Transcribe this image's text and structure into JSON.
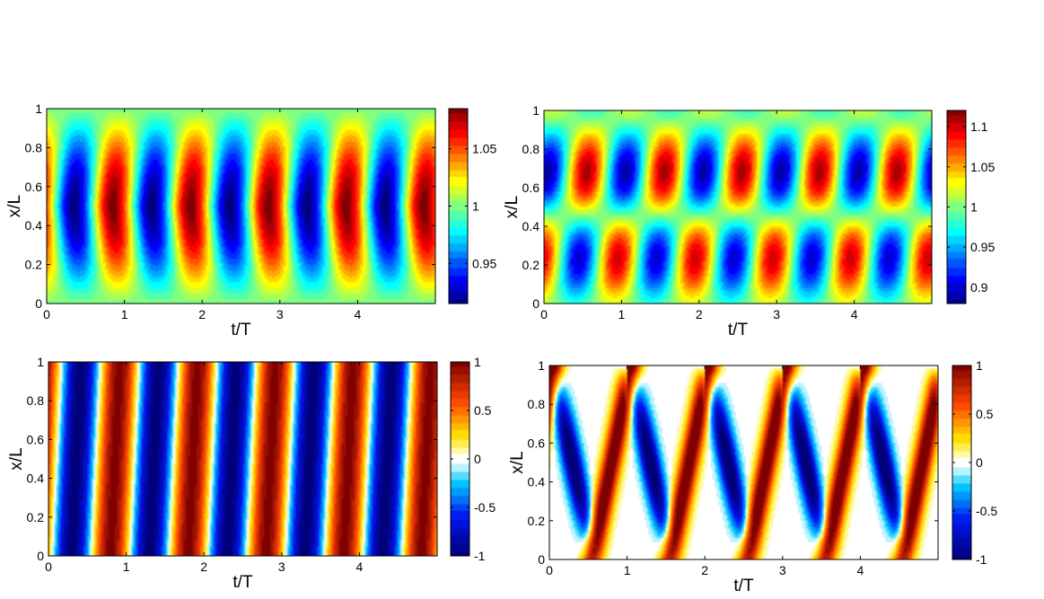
{
  "chart_data": [
    {
      "type": "heatmap",
      "xlabel": "t/T",
      "ylabel": "x/L",
      "xlim": [
        0,
        5
      ],
      "ylim": [
        0,
        1
      ],
      "xticks": [
        "0",
        "1",
        "2",
        "3",
        "4"
      ],
      "yticks": [
        "0",
        "0.2",
        "0.4",
        "0.6",
        "0.8",
        "1"
      ],
      "colorbar": {
        "range": [
          0.915,
          1.085
        ],
        "ticks": [
          "0.95",
          "1",
          "1.05"
        ]
      },
      "field": "standing pattern: nodes at x/L=0 and 1, extremum near x/L≈0.5; alternating minima (~0.92) and maxima (~1.08) with period ≈1 in t/T"
    },
    {
      "type": "heatmap",
      "xlabel": "t/T",
      "ylabel": "x/L",
      "xlim": [
        0,
        5
      ],
      "ylim": [
        0,
        1
      ],
      "xticks": [
        "0",
        "1",
        "2",
        "3",
        "4"
      ],
      "yticks": [
        "0",
        "0.2",
        "0.4",
        "0.6",
        "0.8",
        "1"
      ],
      "colorbar": {
        "range": [
          0.88,
          1.12
        ],
        "ticks": [
          "0.9",
          "0.95",
          "1",
          "1.05",
          "1.1"
        ]
      },
      "field": "two-lobed pattern split near x/L≈0.4–0.6 with alternating extrema every half period"
    },
    {
      "type": "heatmap",
      "xlabel": "t/T",
      "ylabel": "x/L",
      "xlim": [
        0,
        5
      ],
      "ylim": [
        0,
        1
      ],
      "xticks": [
        "0",
        "1",
        "2",
        "3",
        "4"
      ],
      "yticks": [
        "0",
        "0.2",
        "0.4",
        "0.6",
        "0.8",
        "1"
      ],
      "colorbar": {
        "range": [
          -1,
          1
        ],
        "ticks": [
          "-1",
          "-0.5",
          "0",
          "0.5",
          "1"
        ]
      },
      "field": "traveling wave: alternating red (1) / blue (-1) tilted stripes, about 10 stripes across t/T 0–5"
    },
    {
      "type": "heatmap",
      "xlabel": "t/T",
      "ylabel": "x/L",
      "xlim": [
        0,
        5
      ],
      "ylim": [
        0,
        1
      ],
      "xticks": [
        "0",
        "1",
        "2",
        "3",
        "4"
      ],
      "yticks": [
        "0",
        "0.2",
        "0.4",
        "0.6",
        "0.8",
        "1"
      ],
      "colorbar": {
        "range": [
          -1,
          1
        ],
        "ticks": [
          "-1",
          "-0.5",
          "0",
          "0.5",
          "1"
        ]
      },
      "field": "zig-zag reflecting waves: diagonal red/blue bands between x/L=0 and 1 on a white background"
    }
  ]
}
